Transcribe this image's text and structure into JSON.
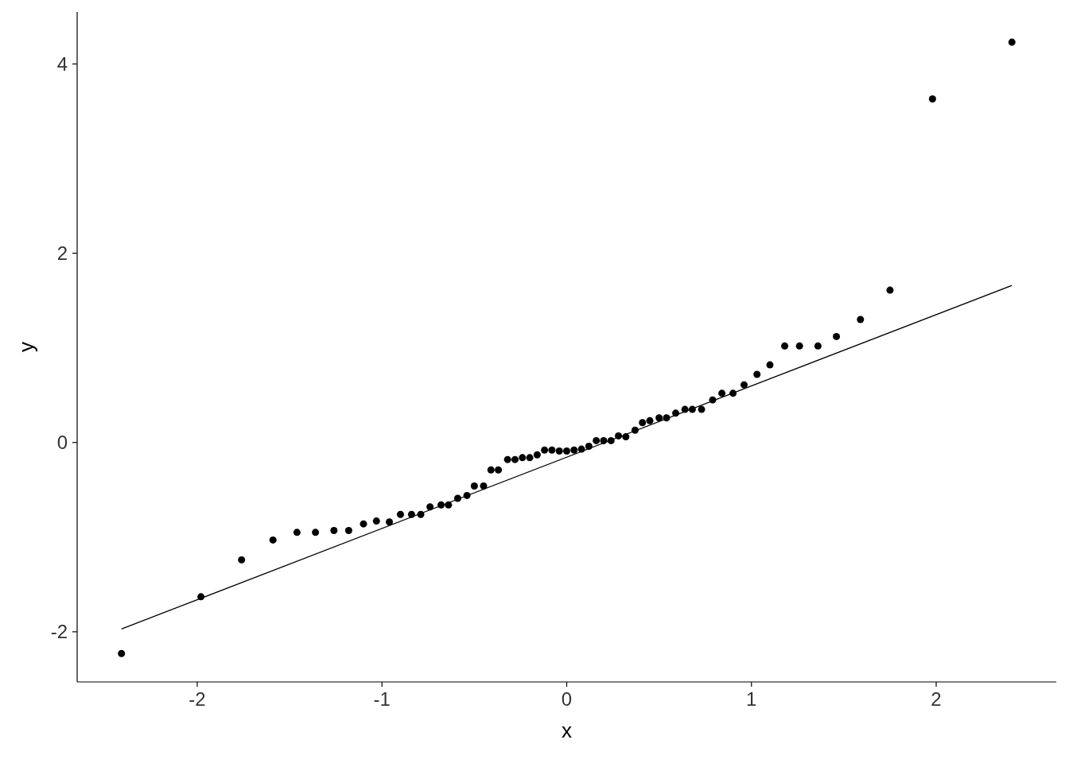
{
  "chart_data": {
    "type": "scatter",
    "xlabel": "x",
    "ylabel": "y",
    "xlim": [
      -2.65,
      2.65
    ],
    "ylim": [
      -2.53,
      4.55
    ],
    "xticks": [
      -2,
      -1,
      0,
      1,
      2
    ],
    "yticks": [
      -2,
      0,
      2,
      4
    ],
    "grid": false,
    "series": [
      {
        "color": "#000000",
        "marker": "circle",
        "x": [
          -2.41,
          -1.98,
          -1.76,
          -1.59,
          -1.46,
          -1.36,
          -1.26,
          -1.18,
          -1.1,
          -1.03,
          -0.96,
          -0.9,
          -0.84,
          -0.79,
          -0.74,
          -0.68,
          -0.64,
          -0.59,
          -0.54,
          -0.5,
          -0.45,
          -0.41,
          -0.37,
          -0.32,
          -0.28,
          -0.24,
          -0.2,
          -0.16,
          -0.12,
          -0.08,
          -0.04,
          0,
          0.04,
          0.08,
          0.12,
          0.16,
          0.2,
          0.24,
          0.28,
          0.32,
          0.37,
          0.41,
          0.45,
          0.5,
          0.54,
          0.59,
          0.64,
          0.68,
          0.73,
          0.79,
          0.84,
          0.9,
          0.96,
          1.03,
          1.1,
          1.18,
          1.26,
          1.36,
          1.46,
          1.59,
          1.75,
          1.98,
          2.41
        ],
        "values": [
          -2.23,
          -1.63,
          -1.24,
          -1.03,
          -0.95,
          -0.95,
          -0.93,
          -0.93,
          -0.86,
          -0.83,
          -0.84,
          -0.76,
          -0.76,
          -0.76,
          -0.68,
          -0.66,
          -0.66,
          -0.59,
          -0.56,
          -0.46,
          -0.46,
          -0.29,
          -0.29,
          -0.18,
          -0.18,
          -0.16,
          -0.16,
          -0.13,
          -0.08,
          -0.08,
          -0.09,
          -0.09,
          -0.08,
          -0.07,
          -0.04,
          0.02,
          0.02,
          0.02,
          0.07,
          0.06,
          0.13,
          0.21,
          0.23,
          0.26,
          0.26,
          0.31,
          0.35,
          0.35,
          0.35,
          0.45,
          0.52,
          0.52,
          0.61,
          0.72,
          0.82,
          1.02,
          1.02,
          1.02,
          1.12,
          1.3,
          1.61,
          3.63,
          4.23
        ]
      },
      {
        "type": "line",
        "color": "#000000",
        "line_style": "solid",
        "marker": "none",
        "x": [
          -2.41,
          2.41
        ],
        "values": [
          -1.97,
          1.66
        ]
      }
    ]
  }
}
